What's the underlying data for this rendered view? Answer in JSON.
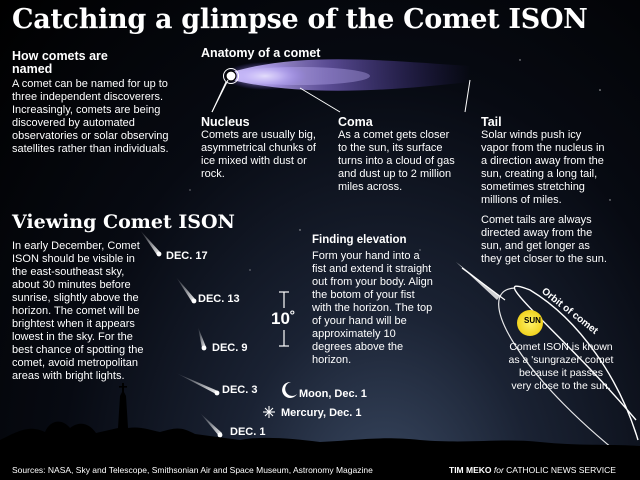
{
  "title": "Catching a glimpse of the Comet ISON",
  "named": {
    "heading": "How comets are named",
    "text": "A comet can be named for up to three independent discoverers. Increasingly, comets are being discovered by automated observatories or solar observing satellites rather than individuals."
  },
  "anatomy": {
    "heading": "Anatomy of a comet",
    "parts": [
      {
        "label": "Nucleus",
        "text": "Comets are usually big, asymmetrical chunks of ice mixed with dust or rock."
      },
      {
        "label": "Coma",
        "text": "As a comet gets closer to the sun, its surface turns into a cloud of gas and dust up to 2 million miles across."
      },
      {
        "label": "Tail",
        "text": "Solar winds push icy vapor from the nucleus in a direction away from the sun, creating a long tail, sometimes stretching millions of miles."
      }
    ]
  },
  "tails_note": "Comet tails are always directed away from the sun, and get longer as they get closer to the sun.",
  "viewing": {
    "heading": "Viewing Comet ISON",
    "text": "In early December, Comet ISON should be visible in the east-southeast sky, about 30 minutes before sunrise, slightly above the horizon. The comet will be brightest when it appears lowest in the sky. For the best chance of spotting the comet, avoid metropolitan areas with bright lights.",
    "dates": [
      "DEC. 17",
      "DEC. 13",
      "DEC. 9",
      "DEC. 3",
      "DEC. 1"
    ],
    "moon_label": "Moon, Dec. 1",
    "mercury_label": "Mercury, Dec. 1",
    "degrees_label": "10˚"
  },
  "elevation": {
    "heading": "Finding elevation",
    "text": "Form your hand into a fist and extend it straight out from your body. Align the botom of your fist with the horizon. The top of your hand will be approximately 10 degrees above the horizon."
  },
  "orbit": {
    "sun_label": "SUN",
    "orbit_label": "Orbit of comet",
    "sungrazer_text": "Comet ISON is known as a 'sungrazer' comet because it passes very close to the sun."
  },
  "footer": {
    "sources": "Sources: NASA, Sky and Telescope, Smithsonian Air and Space Museum, Astronomy Magazine",
    "credit_name": "TIM MEKO",
    "credit_for": "for",
    "credit_org": "CATHOLIC NEWS SERVICE"
  },
  "colors": {
    "accent_sun": "#f4e23c",
    "coma_glow": "#b9a6ff",
    "text": "#ffffff",
    "background": "#05070d"
  }
}
